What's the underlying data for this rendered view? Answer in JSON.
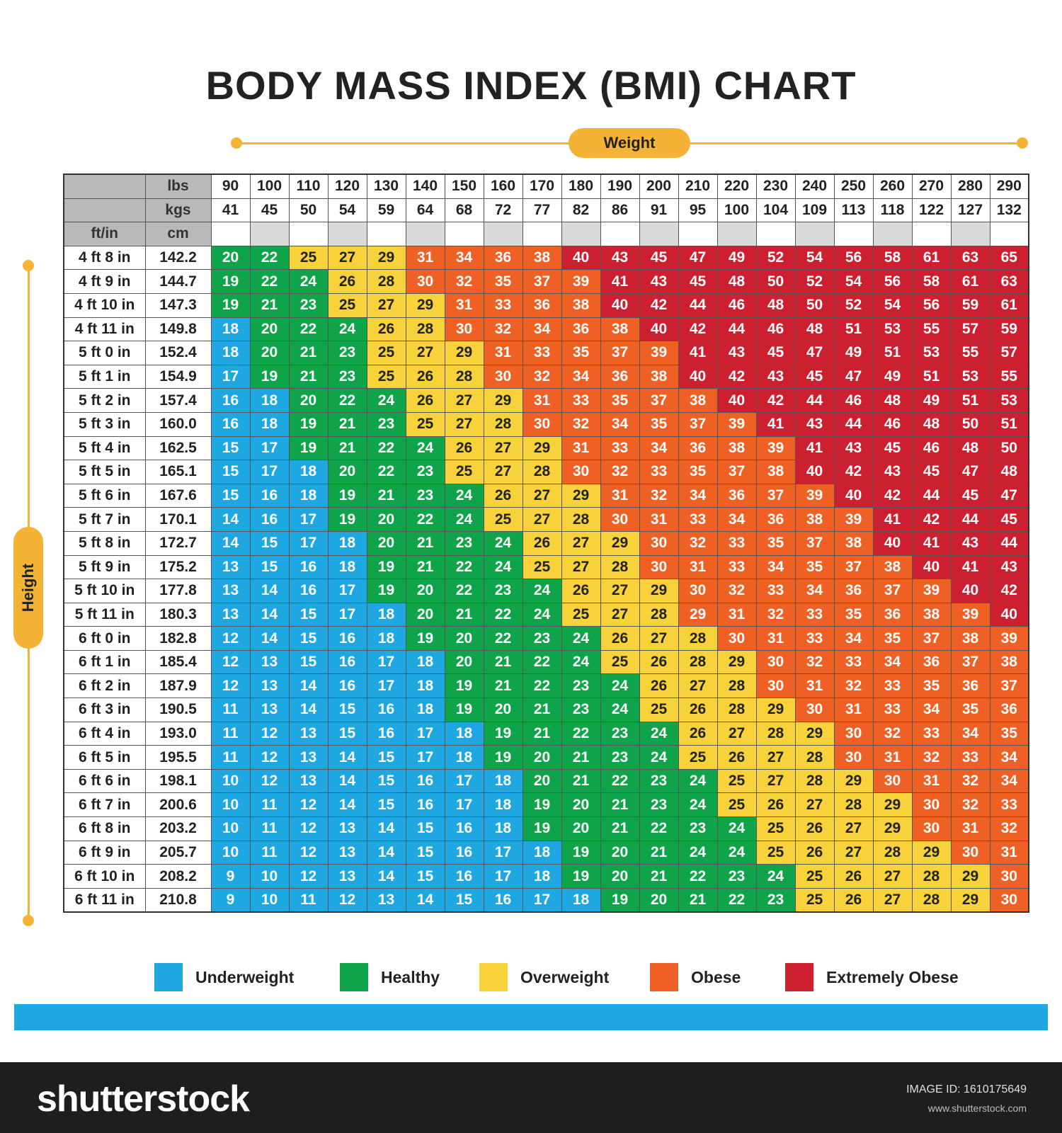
{
  "title": "BODY MASS INDEX (BMI) CHART",
  "weight_label": "Weight",
  "height_label": "Height",
  "header": {
    "lbs": "lbs",
    "kgs": "kgs",
    "ftin": "ft/in",
    "cm": "cm"
  },
  "footer": {
    "brand": "shutterstock",
    "image_id": "IMAGE ID: 1610175649",
    "site": "www.shutterstock.com"
  },
  "colors": {
    "Underweight": "#1ea7e1",
    "Healthy": "#10a44a",
    "Overweight": "#f7d23a",
    "Obese": "#ef6024",
    "Extremely Obese": "#cc1f2f"
  },
  "chart_data": {
    "type": "heatmap",
    "title": "BODY MASS INDEX (BMI) CHART",
    "x_label": "Weight",
    "y_label": "Height",
    "weights_lbs": [
      90,
      100,
      110,
      120,
      130,
      140,
      150,
      160,
      170,
      180,
      190,
      200,
      210,
      220,
      230,
      240,
      250,
      260,
      270,
      280,
      290
    ],
    "weights_kgs": [
      41,
      45,
      50,
      54,
      59,
      64,
      68,
      72,
      77,
      82,
      86,
      91,
      95,
      100,
      104,
      109,
      113,
      118,
      122,
      127,
      132
    ],
    "heights_ftin": [
      "4 ft 8 in",
      "4 ft 9 in",
      "4 ft 10 in",
      "4 ft 11 in",
      "5 ft 0 in",
      "5 ft 1 in",
      "5 ft 2 in",
      "5 ft 3 in",
      "5 ft 4 in",
      "5 ft 5 in",
      "5 ft 6 in",
      "5 ft 7 in",
      "5 ft 8 in",
      "5 ft 9 in",
      "5 ft 10 in",
      "5 ft 11 in",
      "6 ft 0 in",
      "6 ft 1 in",
      "6 ft 2 in",
      "6 ft 3 in",
      "6 ft 4 in",
      "6 ft 5 in",
      "6 ft 6 in",
      "6 ft 7 in",
      "6 ft 8 in",
      "6 ft 9 in",
      "6 ft 10 in",
      "6 ft 11 in"
    ],
    "heights_cm": [
      "142.2",
      "144.7",
      "147.3",
      "149.8",
      "152.4",
      "154.9",
      "157.4",
      "160.0",
      "162.5",
      "165.1",
      "167.6",
      "170.1",
      "172.7",
      "175.2",
      "177.8",
      "180.3",
      "182.8",
      "185.4",
      "187.9",
      "190.5",
      "193.0",
      "195.5",
      "198.1",
      "200.6",
      "203.2",
      "205.7",
      "208.2",
      "210.8"
    ],
    "values": [
      [
        20,
        22,
        25,
        27,
        29,
        31,
        34,
        36,
        38,
        40,
        43,
        45,
        47,
        49,
        52,
        54,
        56,
        58,
        61,
        63,
        65
      ],
      [
        19,
        22,
        24,
        26,
        28,
        30,
        32,
        35,
        37,
        39,
        41,
        43,
        45,
        48,
        50,
        52,
        54,
        56,
        58,
        61,
        63
      ],
      [
        19,
        21,
        23,
        25,
        27,
        29,
        31,
        33,
        36,
        38,
        40,
        42,
        44,
        46,
        48,
        50,
        52,
        54,
        56,
        59,
        61
      ],
      [
        18,
        20,
        22,
        24,
        26,
        28,
        30,
        32,
        34,
        36,
        38,
        40,
        42,
        44,
        46,
        48,
        51,
        53,
        55,
        57,
        59
      ],
      [
        18,
        20,
        21,
        23,
        25,
        27,
        29,
        31,
        33,
        35,
        37,
        39,
        41,
        43,
        45,
        47,
        49,
        51,
        53,
        55,
        57
      ],
      [
        17,
        19,
        21,
        23,
        25,
        26,
        28,
        30,
        32,
        34,
        36,
        38,
        40,
        42,
        43,
        45,
        47,
        49,
        51,
        53,
        55
      ],
      [
        16,
        18,
        20,
        22,
        24,
        26,
        27,
        29,
        31,
        33,
        35,
        37,
        38,
        40,
        42,
        44,
        46,
        48,
        49,
        51,
        53
      ],
      [
        16,
        18,
        19,
        21,
        23,
        25,
        27,
        28,
        30,
        32,
        34,
        35,
        37,
        39,
        41,
        43,
        44,
        46,
        48,
        50,
        51
      ],
      [
        15,
        17,
        19,
        21,
        22,
        24,
        26,
        27,
        29,
        31,
        33,
        34,
        36,
        38,
        39,
        41,
        43,
        45,
        46,
        48,
        50
      ],
      [
        15,
        17,
        18,
        20,
        22,
        23,
        25,
        27,
        28,
        30,
        32,
        33,
        35,
        37,
        38,
        40,
        42,
        43,
        45,
        47,
        48
      ],
      [
        15,
        16,
        18,
        19,
        21,
        23,
        24,
        26,
        27,
        29,
        31,
        32,
        34,
        36,
        37,
        39,
        40,
        42,
        44,
        45,
        47
      ],
      [
        14,
        16,
        17,
        19,
        20,
        22,
        24,
        25,
        27,
        28,
        30,
        31,
        33,
        34,
        36,
        38,
        39,
        41,
        42,
        44,
        45
      ],
      [
        14,
        15,
        17,
        18,
        20,
        21,
        23,
        24,
        26,
        27,
        29,
        30,
        32,
        33,
        35,
        37,
        38,
        40,
        41,
        43,
        44
      ],
      [
        13,
        15,
        16,
        18,
        19,
        21,
        22,
        24,
        25,
        27,
        28,
        30,
        31,
        33,
        34,
        35,
        37,
        38,
        40,
        41,
        43
      ],
      [
        13,
        14,
        16,
        17,
        19,
        20,
        22,
        23,
        24,
        26,
        27,
        29,
        30,
        32,
        33,
        34,
        36,
        37,
        39,
        40,
        42
      ],
      [
        13,
        14,
        15,
        17,
        18,
        20,
        21,
        22,
        24,
        25,
        27,
        28,
        29,
        31,
        32,
        33,
        35,
        36,
        38,
        39,
        40
      ],
      [
        12,
        14,
        15,
        16,
        18,
        19,
        20,
        22,
        23,
        24,
        26,
        27,
        28,
        30,
        31,
        33,
        34,
        35,
        37,
        38,
        39
      ],
      [
        12,
        13,
        15,
        16,
        17,
        18,
        20,
        21,
        22,
        24,
        25,
        26,
        28,
        29,
        30,
        32,
        33,
        34,
        36,
        37,
        38
      ],
      [
        12,
        13,
        14,
        16,
        17,
        18,
        19,
        21,
        22,
        23,
        24,
        26,
        27,
        28,
        30,
        31,
        32,
        33,
        35,
        36,
        37
      ],
      [
        11,
        13,
        14,
        15,
        16,
        18,
        19,
        20,
        21,
        23,
        24,
        25,
        26,
        28,
        29,
        30,
        31,
        33,
        34,
        35,
        36
      ],
      [
        11,
        12,
        13,
        15,
        16,
        17,
        18,
        19,
        21,
        22,
        23,
        24,
        26,
        27,
        28,
        29,
        30,
        32,
        33,
        34,
        35
      ],
      [
        11,
        12,
        13,
        14,
        15,
        17,
        18,
        19,
        20,
        21,
        23,
        24,
        25,
        26,
        27,
        28,
        30,
        31,
        32,
        33,
        34
      ],
      [
        10,
        12,
        13,
        14,
        15,
        16,
        17,
        18,
        20,
        21,
        22,
        23,
        24,
        25,
        27,
        28,
        29,
        30,
        31,
        32,
        34
      ],
      [
        10,
        11,
        12,
        14,
        15,
        16,
        17,
        18,
        19,
        20,
        21,
        23,
        24,
        25,
        26,
        27,
        28,
        29,
        30,
        32,
        33
      ],
      [
        10,
        11,
        12,
        13,
        14,
        15,
        16,
        18,
        19,
        20,
        21,
        22,
        23,
        24,
        25,
        26,
        27,
        29,
        30,
        31,
        32
      ],
      [
        10,
        11,
        12,
        13,
        14,
        15,
        16,
        17,
        18,
        19,
        20,
        21,
        24,
        24,
        25,
        26,
        27,
        28,
        29,
        30,
        31
      ],
      [
        9,
        10,
        12,
        13,
        14,
        15,
        16,
        17,
        18,
        19,
        20,
        21,
        22,
        23,
        24,
        25,
        26,
        27,
        28,
        29,
        30
      ],
      [
        9,
        10,
        11,
        12,
        13,
        14,
        15,
        16,
        17,
        18,
        19,
        20,
        21,
        22,
        23,
        25,
        26,
        27,
        28,
        29,
        30
      ]
    ],
    "categories": [
      [
        1,
        1,
        2,
        2,
        2,
        3,
        3,
        3,
        3,
        4,
        4,
        4,
        4,
        4,
        4,
        4,
        4,
        4,
        4,
        4,
        4
      ],
      [
        1,
        1,
        1,
        2,
        2,
        3,
        3,
        3,
        3,
        3,
        4,
        4,
        4,
        4,
        4,
        4,
        4,
        4,
        4,
        4,
        4
      ],
      [
        1,
        1,
        1,
        2,
        2,
        2,
        3,
        3,
        3,
        3,
        4,
        4,
        4,
        4,
        4,
        4,
        4,
        4,
        4,
        4,
        4
      ],
      [
        0,
        1,
        1,
        1,
        2,
        2,
        3,
        3,
        3,
        3,
        3,
        4,
        4,
        4,
        4,
        4,
        4,
        4,
        4,
        4,
        4
      ],
      [
        0,
        1,
        1,
        1,
        2,
        2,
        2,
        3,
        3,
        3,
        3,
        3,
        4,
        4,
        4,
        4,
        4,
        4,
        4,
        4,
        4
      ],
      [
        0,
        1,
        1,
        1,
        2,
        2,
        2,
        3,
        3,
        3,
        3,
        3,
        4,
        4,
        4,
        4,
        4,
        4,
        4,
        4,
        4
      ],
      [
        0,
        0,
        1,
        1,
        1,
        2,
        2,
        2,
        3,
        3,
        3,
        3,
        3,
        4,
        4,
        4,
        4,
        4,
        4,
        4,
        4
      ],
      [
        0,
        0,
        1,
        1,
        1,
        2,
        2,
        2,
        3,
        3,
        3,
        3,
        3,
        3,
        4,
        4,
        4,
        4,
        4,
        4,
        4
      ],
      [
        0,
        0,
        1,
        1,
        1,
        1,
        2,
        2,
        2,
        3,
        3,
        3,
        3,
        3,
        3,
        4,
        4,
        4,
        4,
        4,
        4
      ],
      [
        0,
        0,
        0,
        1,
        1,
        1,
        2,
        2,
        2,
        3,
        3,
        3,
        3,
        3,
        3,
        4,
        4,
        4,
        4,
        4,
        4
      ],
      [
        0,
        0,
        0,
        1,
        1,
        1,
        1,
        2,
        2,
        2,
        3,
        3,
        3,
        3,
        3,
        3,
        4,
        4,
        4,
        4,
        4
      ],
      [
        0,
        0,
        0,
        1,
        1,
        1,
        1,
        2,
        2,
        2,
        3,
        3,
        3,
        3,
        3,
        3,
        3,
        4,
        4,
        4,
        4
      ],
      [
        0,
        0,
        0,
        0,
        1,
        1,
        1,
        1,
        2,
        2,
        2,
        3,
        3,
        3,
        3,
        3,
        3,
        4,
        4,
        4,
        4
      ],
      [
        0,
        0,
        0,
        0,
        1,
        1,
        1,
        1,
        2,
        2,
        2,
        3,
        3,
        3,
        3,
        3,
        3,
        3,
        4,
        4,
        4
      ],
      [
        0,
        0,
        0,
        0,
        1,
        1,
        1,
        1,
        1,
        2,
        2,
        2,
        3,
        3,
        3,
        3,
        3,
        3,
        3,
        4,
        4
      ],
      [
        0,
        0,
        0,
        0,
        0,
        1,
        1,
        1,
        1,
        2,
        2,
        2,
        3,
        3,
        3,
        3,
        3,
        3,
        3,
        3,
        4
      ],
      [
        0,
        0,
        0,
        0,
        0,
        1,
        1,
        1,
        1,
        1,
        2,
        2,
        2,
        3,
        3,
        3,
        3,
        3,
        3,
        3,
        3
      ],
      [
        0,
        0,
        0,
        0,
        0,
        0,
        1,
        1,
        1,
        1,
        2,
        2,
        2,
        2,
        3,
        3,
        3,
        3,
        3,
        3,
        3
      ],
      [
        0,
        0,
        0,
        0,
        0,
        0,
        1,
        1,
        1,
        1,
        1,
        2,
        2,
        2,
        3,
        3,
        3,
        3,
        3,
        3,
        3
      ],
      [
        0,
        0,
        0,
        0,
        0,
        0,
        1,
        1,
        1,
        1,
        1,
        2,
        2,
        2,
        2,
        3,
        3,
        3,
        3,
        3,
        3
      ],
      [
        0,
        0,
        0,
        0,
        0,
        0,
        0,
        1,
        1,
        1,
        1,
        1,
        2,
        2,
        2,
        2,
        3,
        3,
        3,
        3,
        3
      ],
      [
        0,
        0,
        0,
        0,
        0,
        0,
        0,
        1,
        1,
        1,
        1,
        1,
        2,
        2,
        2,
        2,
        3,
        3,
        3,
        3,
        3
      ],
      [
        0,
        0,
        0,
        0,
        0,
        0,
        0,
        0,
        1,
        1,
        1,
        1,
        1,
        2,
        2,
        2,
        2,
        3,
        3,
        3,
        3
      ],
      [
        0,
        0,
        0,
        0,
        0,
        0,
        0,
        0,
        1,
        1,
        1,
        1,
        1,
        2,
        2,
        2,
        2,
        2,
        3,
        3,
        3
      ],
      [
        0,
        0,
        0,
        0,
        0,
        0,
        0,
        0,
        1,
        1,
        1,
        1,
        1,
        1,
        2,
        2,
        2,
        2,
        3,
        3,
        3
      ],
      [
        0,
        0,
        0,
        0,
        0,
        0,
        0,
        0,
        0,
        1,
        1,
        1,
        1,
        1,
        2,
        2,
        2,
        2,
        2,
        3,
        3
      ],
      [
        0,
        0,
        0,
        0,
        0,
        0,
        0,
        0,
        0,
        1,
        1,
        1,
        1,
        1,
        1,
        2,
        2,
        2,
        2,
        2,
        3
      ],
      [
        0,
        0,
        0,
        0,
        0,
        0,
        0,
        0,
        0,
        0,
        1,
        1,
        1,
        1,
        1,
        2,
        2,
        2,
        2,
        2,
        3
      ]
    ],
    "legend": [
      "Underweight",
      "Healthy",
      "Overweight",
      "Obese",
      "Extremely Obese"
    ],
    "legend_placement": "bottom"
  }
}
